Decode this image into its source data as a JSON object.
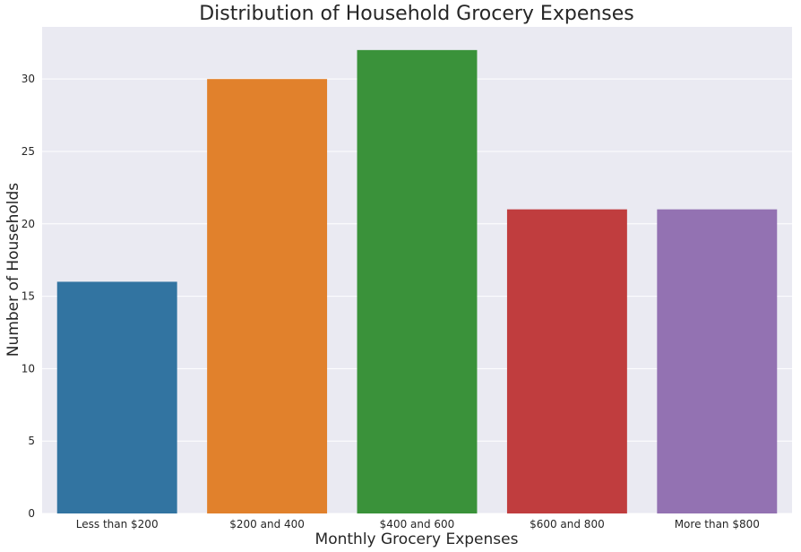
{
  "chart_data": {
    "type": "bar",
    "title": "Distribution of Household Grocery Expenses",
    "xlabel": "Monthly Grocery Expenses",
    "ylabel": "Number of Households",
    "categories": [
      "Less than $200",
      "$200 and 400",
      "$400 and 600",
      "$600 and 800",
      "More than $800"
    ],
    "values": [
      16,
      30,
      32,
      21,
      21
    ],
    "colors": [
      "#3274a1",
      "#e1812c",
      "#3a923a",
      "#c03d3e",
      "#9372b2"
    ],
    "ylim": [
      0,
      33.6
    ],
    "yticks": [
      0,
      5,
      10,
      15,
      20,
      25,
      30
    ],
    "grid": true,
    "background": "#eaeaf2",
    "legend": "none"
  }
}
